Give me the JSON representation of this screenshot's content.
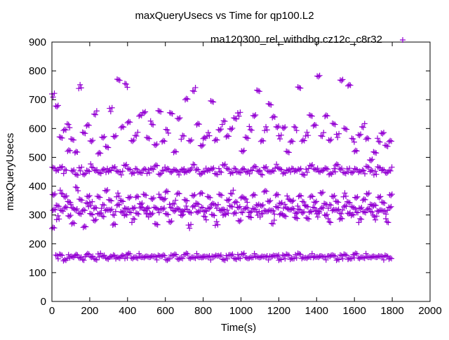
{
  "chart_data": {
    "type": "scatter",
    "title": "maxQueryUsecs vs Time for qp100.L2",
    "xlabel": "Time(s)",
    "ylabel": "maxQueryUsecs",
    "xlim": [
      0,
      2000
    ],
    "ylim": [
      0,
      900
    ],
    "xticks": [
      "0",
      "200",
      "400",
      "600",
      "800",
      "1000",
      "1200",
      "1400",
      "1600",
      "1800",
      "2000"
    ],
    "yticks": [
      "0",
      "100",
      "200",
      "300",
      "400",
      "500",
      "600",
      "700",
      "800",
      "900"
    ],
    "grid": false,
    "legend_position": "top-right",
    "series": [
      {
        "name": "ma120300_rel_withdbg.cz12c_c8r32",
        "color": "#9400d3",
        "marker": "plus",
        "x": [
          0,
          20,
          40,
          60,
          80,
          100,
          120,
          140,
          160,
          180,
          200,
          220,
          240,
          260,
          280,
          300,
          320,
          340,
          360,
          380,
          400,
          420,
          440,
          460,
          480,
          500,
          520,
          540,
          560,
          580,
          600,
          620,
          640,
          660,
          680,
          700,
          720,
          740,
          760,
          780,
          800,
          820,
          840,
          860,
          880,
          900,
          920,
          940,
          960,
          980,
          1000,
          1020,
          1040,
          1060,
          1080,
          1100,
          1120,
          1140,
          1160,
          1180,
          1200,
          1220,
          1240,
          1260,
          1280,
          1300,
          1320,
          1340,
          1360,
          1380,
          1400,
          1420,
          1440,
          1460,
          1480,
          1500,
          1520,
          1540,
          1560,
          1580,
          1600,
          1620,
          1640,
          1660,
          1680,
          1700,
          1720,
          1740,
          1760,
          1780
        ],
        "y": [
          [
            260,
            320,
            370,
            460,
            715
          ],
          [
            155,
            290,
            335,
            455,
            675
          ],
          [
            160,
            310,
            380,
            470,
            570
          ],
          [
            145,
            325,
            360,
            450,
            600
          ],
          [
            155,
            300,
            345,
            520,
            610
          ],
          [
            150,
            330,
            275,
            455,
            560
          ],
          [
            160,
            315,
            390,
            445,
            520
          ],
          [
            155,
            305,
            350,
            460,
            745
          ],
          [
            150,
            320,
            260,
            440,
            580
          ],
          [
            160,
            335,
            370,
            455,
            610
          ],
          [
            155,
            300,
            340,
            470,
            560
          ],
          [
            150,
            325,
            280,
            450,
            655
          ],
          [
            160,
            310,
            365,
            445,
            510
          ],
          [
            155,
            330,
            300,
            460,
            570
          ],
          [
            150,
            315,
            380,
            455,
            540
          ],
          [
            160,
            320,
            350,
            450,
            665
          ],
          [
            155,
            305,
            270,
            465,
            570
          ],
          [
            150,
            330,
            370,
            455,
            770
          ],
          [
            160,
            310,
            345,
            445,
            610
          ],
          [
            155,
            325,
            300,
            470,
            750
          ],
          [
            160,
            315,
            365,
            460,
            620
          ],
          [
            150,
            320,
            280,
            450,
            560
          ],
          [
            155,
            305,
            360,
            455,
            580
          ],
          [
            160,
            330,
            340,
            445,
            640
          ],
          [
            150,
            310,
            375,
            460,
            655
          ],
          [
            155,
            320,
            300,
            450,
            570
          ],
          [
            160,
            305,
            355,
            455,
            620
          ],
          [
            150,
            330,
            270,
            470,
            540
          ],
          [
            155,
            315,
            365,
            445,
            660
          ],
          [
            160,
            320,
            350,
            460,
            560
          ],
          [
            150,
            305,
            380,
            455,
            590
          ],
          [
            155,
            330,
            280,
            450,
            650
          ],
          [
            160,
            310,
            345,
            460,
            520
          ],
          [
            150,
            320,
            370,
            445,
            640
          ],
          [
            155,
            315,
            300,
            455,
            570
          ],
          [
            160,
            325,
            355,
            450,
            700
          ],
          [
            150,
            305,
            260,
            460,
            560
          ],
          [
            155,
            330,
            365,
            470,
            735
          ],
          [
            160,
            315,
            340,
            455,
            610
          ],
          [
            150,
            320,
            380,
            445,
            540
          ],
          [
            155,
            310,
            290,
            455,
            570
          ],
          [
            160,
            325,
            360,
            450,
            580
          ],
          [
            150,
            305,
            340,
            460,
            690
          ],
          [
            155,
            330,
            270,
            445,
            560
          ],
          [
            160,
            315,
            365,
            455,
            600
          ],
          [
            150,
            320,
            300,
            470,
            620
          ],
          [
            155,
            310,
            355,
            460,
            570
          ],
          [
            160,
            325,
            380,
            450,
            600
          ],
          [
            150,
            305,
            340,
            455,
            640
          ],
          [
            155,
            330,
            280,
            445,
            650
          ],
          [
            160,
            315,
            365,
            460,
            520
          ],
          [
            150,
            320,
            350,
            455,
            570
          ],
          [
            155,
            310,
            290,
            450,
            600
          ],
          [
            160,
            325,
            370,
            465,
            640
          ],
          [
            150,
            305,
            340,
            455,
            730
          ],
          [
            155,
            330,
            300,
            445,
            560
          ],
          [
            160,
            315,
            380,
            460,
            600
          ],
          [
            150,
            320,
            350,
            450,
            680
          ],
          [
            155,
            310,
            275,
            455,
            640
          ],
          [
            160,
            325,
            365,
            470,
            610
          ],
          [
            150,
            305,
            340,
            455,
            570
          ],
          [
            155,
            330,
            300,
            445,
            600
          ],
          [
            160,
            315,
            360,
            460,
            520
          ],
          [
            150,
            320,
            345,
            455,
            560
          ],
          [
            155,
            310,
            290,
            450,
            600
          ],
          [
            160,
            325,
            370,
            460,
            740
          ],
          [
            150,
            305,
            340,
            445,
            560
          ],
          [
            155,
            330,
            285,
            455,
            580
          ],
          [
            160,
            315,
            365,
            470,
            640
          ],
          [
            150,
            320,
            350,
            460,
            610
          ],
          [
            155,
            310,
            300,
            455,
            785
          ],
          [
            160,
            325,
            375,
            450,
            580
          ],
          [
            150,
            305,
            340,
            460,
            640
          ],
          [
            155,
            330,
            280,
            445,
            560
          ],
          [
            160,
            315,
            360,
            455,
            620
          ],
          [
            150,
            320,
            345,
            470,
            575
          ],
          [
            155,
            310,
            290,
            460,
            765
          ],
          [
            160,
            325,
            370,
            450,
            600
          ],
          [
            150,
            305,
            340,
            455,
            755
          ],
          [
            155,
            330,
            300,
            445,
            560
          ],
          [
            160,
            315,
            365,
            460,
            520
          ],
          [
            150,
            320,
            280,
            455,
            580
          ],
          [
            155,
            310,
            350,
            450,
            610
          ],
          [
            160,
            325,
            375,
            465,
            560
          ],
          [
            150,
            305,
            340,
            455,
            490
          ],
          [
            155,
            330,
            290,
            445,
            520
          ],
          [
            160,
            315,
            360,
            460,
            560
          ],
          [
            150,
            320,
            345,
            455,
            580
          ],
          [
            155,
            310,
            280,
            450,
            540
          ],
          [
            150,
            325,
            365,
            460,
            560
          ]
        ]
      }
    ]
  }
}
